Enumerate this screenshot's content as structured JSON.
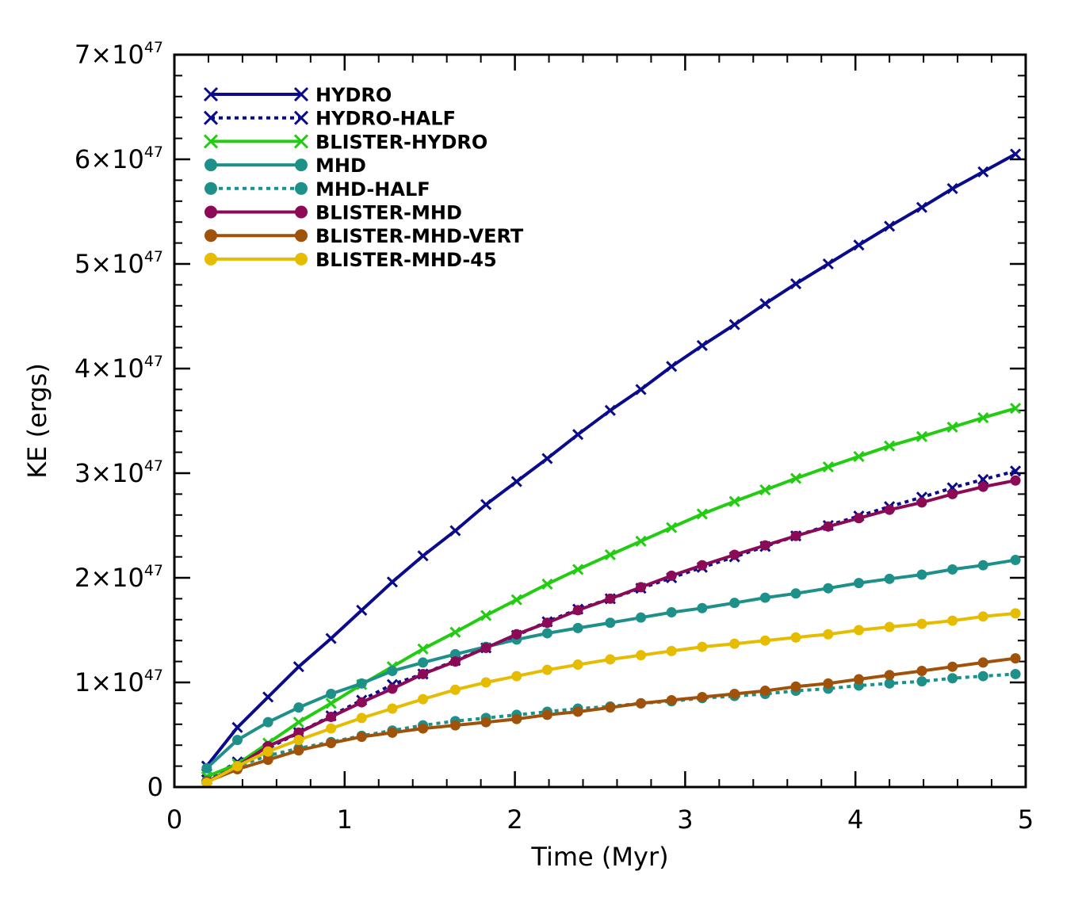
{
  "chart_data": {
    "type": "line",
    "title": "",
    "xlabel": "Time (Myr)",
    "ylabel": "KE (ergs)",
    "xlim": [
      0,
      5
    ],
    "ylim": [
      0,
      7
    ],
    "y_unit_exponent": 47,
    "x_ticks": [
      {
        "value": 0,
        "label": "0"
      },
      {
        "value": 1,
        "label": "1"
      },
      {
        "value": 2,
        "label": "2"
      },
      {
        "value": 3,
        "label": "3"
      },
      {
        "value": 4,
        "label": "4"
      },
      {
        "value": 5,
        "label": "5"
      }
    ],
    "y_ticks": [
      {
        "value": 0,
        "label": "0",
        "sup": ""
      },
      {
        "value": 1,
        "label": "1×10",
        "sup": "47"
      },
      {
        "value": 2,
        "label": "2×10",
        "sup": "47"
      },
      {
        "value": 3,
        "label": "3×10",
        "sup": "47"
      },
      {
        "value": 4,
        "label": "4×10",
        "sup": "47"
      },
      {
        "value": 5,
        "label": "5×10",
        "sup": "47"
      },
      {
        "value": 6,
        "label": "6×10",
        "sup": "47"
      },
      {
        "value": 7,
        "label": "7×10",
        "sup": "47"
      }
    ],
    "x": [
      0.19,
      0.37,
      0.55,
      0.73,
      0.92,
      1.1,
      1.28,
      1.46,
      1.65,
      1.83,
      2.01,
      2.19,
      2.37,
      2.56,
      2.74,
      2.92,
      3.1,
      3.29,
      3.47,
      3.65,
      3.84,
      4.02,
      4.2,
      4.39,
      4.57,
      4.75,
      4.94
    ],
    "legend_position": "top-left",
    "series": [
      {
        "name": "HYDRO",
        "color": "#0a0a8c",
        "dash": "solid",
        "marker": "x",
        "values": [
          0.2,
          0.57,
          0.86,
          1.15,
          1.42,
          1.69,
          1.96,
          2.21,
          2.45,
          2.7,
          2.92,
          3.14,
          3.37,
          3.6,
          3.8,
          4.02,
          4.22,
          4.42,
          4.62,
          4.81,
          5.0,
          5.18,
          5.36,
          5.54,
          5.72,
          5.88,
          6.05
        ]
      },
      {
        "name": "HYDRO-HALF",
        "color": "#0a0a8c",
        "dash": "dotted",
        "marker": "x",
        "values": [
          0.07,
          0.24,
          0.37,
          0.52,
          0.68,
          0.83,
          0.98,
          1.08,
          1.21,
          1.33,
          1.45,
          1.58,
          1.7,
          1.8,
          1.9,
          2.0,
          2.1,
          2.2,
          2.3,
          2.4,
          2.5,
          2.59,
          2.68,
          2.77,
          2.86,
          2.94,
          3.02
        ]
      },
      {
        "name": "BLISTER-HYDRO",
        "color": "#22cc11",
        "dash": "solid",
        "marker": "x",
        "values": [
          0.1,
          0.22,
          0.42,
          0.62,
          0.8,
          0.98,
          1.15,
          1.32,
          1.48,
          1.64,
          1.79,
          1.94,
          2.08,
          2.22,
          2.35,
          2.48,
          2.61,
          2.73,
          2.84,
          2.95,
          3.06,
          3.16,
          3.26,
          3.35,
          3.44,
          3.53,
          3.62
        ]
      },
      {
        "name": "MHD",
        "color": "#1e908a",
        "dash": "solid",
        "marker": "dot",
        "values": [
          0.18,
          0.45,
          0.62,
          0.76,
          0.89,
          0.99,
          1.11,
          1.19,
          1.27,
          1.34,
          1.41,
          1.47,
          1.52,
          1.57,
          1.62,
          1.67,
          1.71,
          1.76,
          1.81,
          1.85,
          1.9,
          1.95,
          1.99,
          2.03,
          2.08,
          2.12,
          2.17
        ]
      },
      {
        "name": "MHD-HALF",
        "color": "#1e908a",
        "dash": "dotted",
        "marker": "dot",
        "values": [
          0.06,
          0.2,
          0.3,
          0.37,
          0.43,
          0.49,
          0.54,
          0.59,
          0.63,
          0.66,
          0.69,
          0.72,
          0.75,
          0.77,
          0.8,
          0.82,
          0.85,
          0.87,
          0.89,
          0.92,
          0.94,
          0.97,
          0.99,
          1.01,
          1.04,
          1.06,
          1.08
        ]
      },
      {
        "name": "BLISTER-MHD",
        "color": "#8c0a55",
        "dash": "solid",
        "marker": "dot",
        "values": [
          0.05,
          0.2,
          0.39,
          0.52,
          0.67,
          0.81,
          0.94,
          1.08,
          1.2,
          1.33,
          1.46,
          1.57,
          1.69,
          1.8,
          1.91,
          2.02,
          2.12,
          2.22,
          2.31,
          2.4,
          2.49,
          2.57,
          2.65,
          2.72,
          2.8,
          2.87,
          2.93
        ]
      },
      {
        "name": "BLISTER-MHD-VERT",
        "color": "#a0520a",
        "dash": "solid",
        "marker": "dot",
        "values": [
          0.05,
          0.17,
          0.26,
          0.35,
          0.42,
          0.48,
          0.52,
          0.56,
          0.59,
          0.62,
          0.65,
          0.69,
          0.72,
          0.76,
          0.8,
          0.83,
          0.86,
          0.89,
          0.92,
          0.96,
          0.99,
          1.03,
          1.07,
          1.11,
          1.15,
          1.19,
          1.23
        ]
      },
      {
        "name": "BLISTER-MHD-45",
        "color": "#e6bc00",
        "dash": "solid",
        "marker": "dot",
        "values": [
          0.04,
          0.2,
          0.34,
          0.45,
          0.56,
          0.66,
          0.75,
          0.84,
          0.93,
          1.0,
          1.06,
          1.12,
          1.17,
          1.22,
          1.26,
          1.3,
          1.34,
          1.37,
          1.4,
          1.43,
          1.46,
          1.5,
          1.53,
          1.56,
          1.59,
          1.63,
          1.66
        ]
      }
    ]
  }
}
